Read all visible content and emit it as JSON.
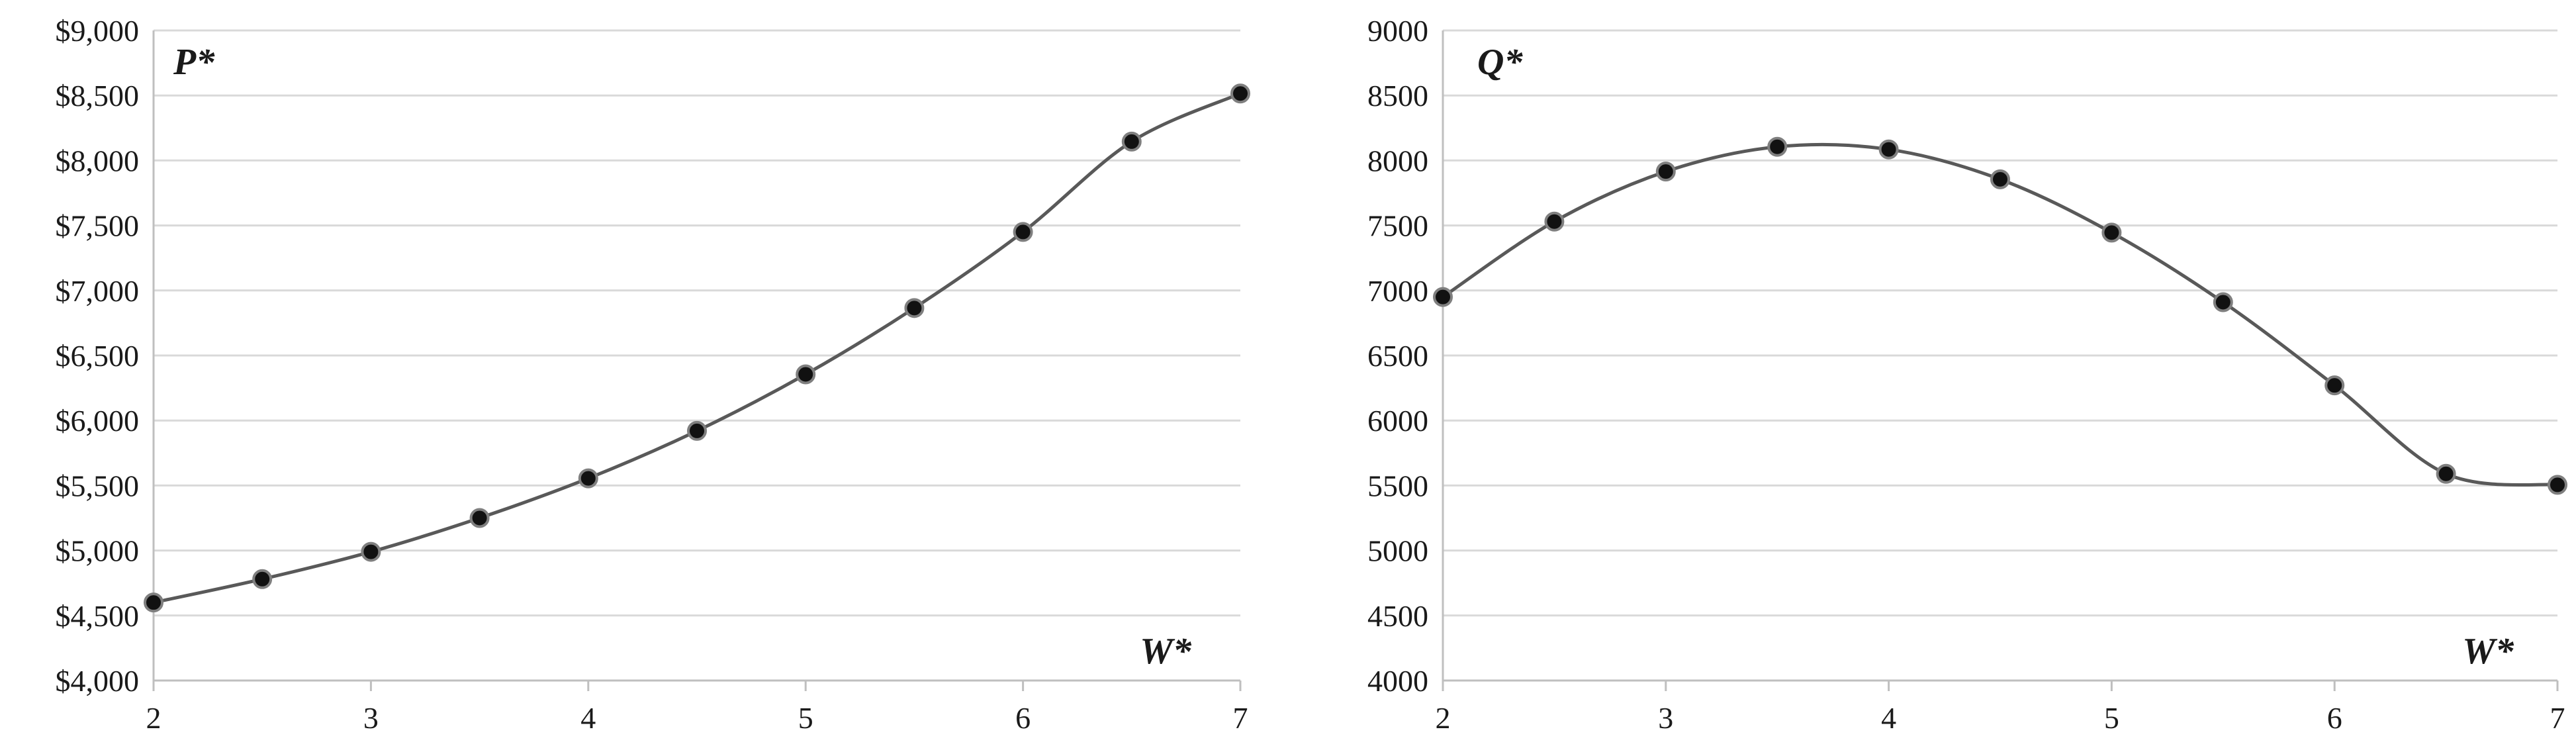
{
  "chart_data": [
    {
      "type": "line",
      "title": "",
      "corner_label": "P*",
      "xlabel": "W*",
      "ylabel": "",
      "y_format": "currency",
      "x": [
        2,
        2.5,
        3,
        3.5,
        4,
        4.5,
        5,
        5.5,
        6,
        6.5,
        7
      ],
      "series": [
        {
          "values": [
            4600,
            4780,
            4990,
            5250,
            5555,
            5920,
            6355,
            6865,
            7450,
            8145,
            8515
          ]
        }
      ],
      "xlim": [
        2,
        7
      ],
      "xticks": [
        2,
        3,
        4,
        5,
        6,
        7
      ],
      "xtick_labels": [
        "2",
        "3",
        "4",
        "5",
        "6",
        "7"
      ],
      "ylim": [
        4000,
        9000
      ],
      "yticks": [
        4000,
        4500,
        5000,
        5500,
        6000,
        6500,
        7000,
        7500,
        8000,
        8500,
        9000
      ],
      "ytick_labels": [
        "$4,000",
        "$4,500",
        "$5,000",
        "$5,500",
        "$6,000",
        "$6,500",
        "$7,000",
        "$7,500",
        "$8,000",
        "$8,500",
        "$9,000"
      ],
      "grid": true,
      "smooth": true,
      "marker": "circle",
      "line_color": "#595959",
      "marker_color": "#111111"
    },
    {
      "type": "line",
      "title": "",
      "corner_label": "Q*",
      "xlabel": "W*",
      "ylabel": "",
      "y_format": "plain",
      "x": [
        2,
        2.5,
        3,
        3.5,
        4,
        4.5,
        5,
        5.5,
        6,
        6.5,
        7
      ],
      "series": [
        {
          "values": [
            6950,
            7530,
            7915,
            8105,
            8085,
            7855,
            7445,
            6910,
            6270,
            5590,
            5505
          ]
        }
      ],
      "xlim": [
        2,
        7
      ],
      "xticks": [
        2,
        3,
        4,
        5,
        6,
        7
      ],
      "xtick_labels": [
        "2",
        "3",
        "4",
        "5",
        "6",
        "7"
      ],
      "ylim": [
        4000,
        9000
      ],
      "yticks": [
        4000,
        4500,
        5000,
        5500,
        6000,
        6500,
        7000,
        7500,
        8000,
        8500,
        9000
      ],
      "ytick_labels": [
        "4000",
        "4500",
        "5000",
        "5500",
        "6000",
        "6500",
        "7000",
        "7500",
        "8000",
        "8500",
        "9000"
      ],
      "grid": true,
      "smooth": true,
      "marker": "circle",
      "line_color": "#595959",
      "marker_color": "#111111"
    }
  ]
}
